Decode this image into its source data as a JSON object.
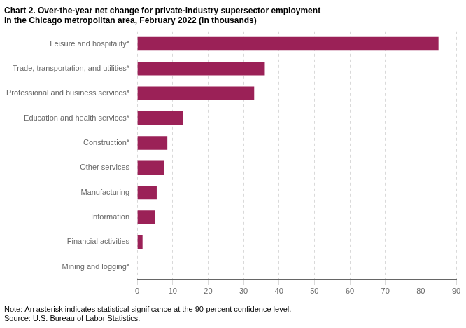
{
  "chart_data": {
    "type": "bar",
    "orientation": "horizontal",
    "title": [
      "Chart 2. Over-the-year net change for private-industry supersector employment",
      "in the Chicago metropolitan area, February 2022 (in thousands)"
    ],
    "annotations": [
      "Note: An asterisk indicates statistical significance at the 90-percent confidence level.",
      "Source: U.S. Bureau of Labor Statistics."
    ],
    "categories": [
      "Mining and logging*",
      "Financial activities",
      "Information",
      "Manufacturing",
      "Other services",
      "Construction*",
      "Education and health services*",
      "Professional and business services*",
      "Trade, transportation, and utilities*",
      "Leisure and hospitality*"
    ],
    "values": [
      0.1,
      1.5,
      5.0,
      5.5,
      7.5,
      8.5,
      13.0,
      33.0,
      36.0,
      85.0
    ],
    "color": "#9b2157",
    "xlim": [
      0,
      90
    ],
    "xticks": [
      0,
      10,
      20,
      30,
      40,
      50,
      60,
      70,
      80,
      90
    ],
    "grid": true
  }
}
